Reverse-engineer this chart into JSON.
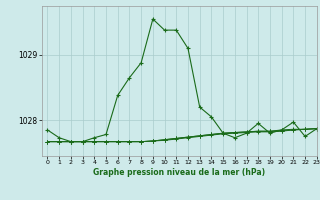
{
  "title": "Graphe pression niveau de la mer (hPa)",
  "bg_color": "#ceeaea",
  "grid_color": "#aacccc",
  "line_color": "#1a6b1a",
  "xlim": [
    -0.5,
    23
  ],
  "ylim": [
    1027.45,
    1029.75
  ],
  "yticks": [
    1028,
    1029
  ],
  "xticks": [
    0,
    1,
    2,
    3,
    4,
    5,
    6,
    7,
    8,
    9,
    10,
    11,
    12,
    13,
    14,
    15,
    16,
    17,
    18,
    19,
    20,
    21,
    22,
    23
  ],
  "series1": [
    1027.85,
    1027.73,
    1027.67,
    1027.67,
    1027.73,
    1027.78,
    1028.38,
    1028.65,
    1028.88,
    1029.55,
    1029.38,
    1029.38,
    1029.1,
    1028.2,
    1028.05,
    1027.8,
    1027.73,
    1027.8,
    1027.95,
    1027.8,
    1027.85,
    1027.97,
    1027.75,
    1027.87
  ],
  "series2": [
    1027.67,
    1027.67,
    1027.67,
    1027.67,
    1027.67,
    1027.67,
    1027.67,
    1027.67,
    1027.67,
    1027.68,
    1027.7,
    1027.72,
    1027.74,
    1027.76,
    1027.78,
    1027.8,
    1027.81,
    1027.82,
    1027.83,
    1027.83,
    1027.84,
    1027.85,
    1027.86,
    1027.87
  ],
  "series3": [
    1027.67,
    1027.67,
    1027.67,
    1027.67,
    1027.67,
    1027.67,
    1027.67,
    1027.67,
    1027.67,
    1027.68,
    1027.69,
    1027.71,
    1027.73,
    1027.75,
    1027.77,
    1027.79,
    1027.8,
    1027.81,
    1027.82,
    1027.82,
    1027.83,
    1027.85,
    1027.86,
    1027.87
  ],
  "series4": [
    1027.67,
    1027.67,
    1027.67,
    1027.67,
    1027.67,
    1027.67,
    1027.67,
    1027.67,
    1027.67,
    1027.68,
    1027.7,
    1027.72,
    1027.74,
    1027.76,
    1027.78,
    1027.8,
    1027.81,
    1027.82,
    1027.83,
    1027.83,
    1027.85,
    1027.86,
    1027.86,
    1027.87
  ]
}
